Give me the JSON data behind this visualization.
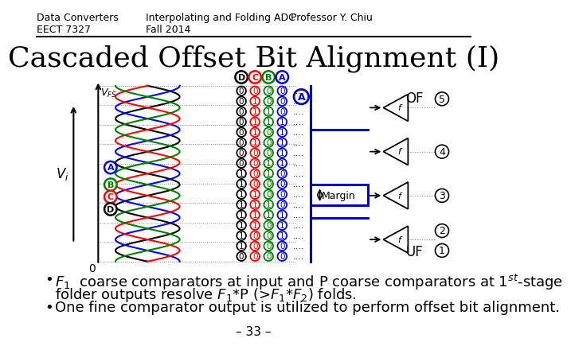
{
  "header_left": "Data Converters\nEECT 7327",
  "header_center": "Interpolating and Folding ADC\nFall 2014",
  "header_right": "Professor Y. Chiu",
  "title": "Cascaded Offset Bit Alignment (I)",
  "bullet1_main": "$F_1$  coarse comparators at input and P coarse comparators at 1$^{st}$-stage",
  "bullet1_sub": "folder outputs resolve $F_1$*P (>$F_1$*$F_2$) folds.",
  "bullet2": "One fine comparator output is utilized to perform offset bit alignment.",
  "footer": "– 33 –",
  "bg_color": "#ffffff",
  "text_color": "#000000",
  "header_line_color": "#000000",
  "title_fontsize": 26,
  "header_fontsize": 9,
  "body_fontsize": 13,
  "footer_fontsize": 11,
  "wave_colors": [
    "black",
    "blue",
    "red",
    "green"
  ],
  "bit_colors": [
    "black",
    "red",
    "green",
    "blue"
  ],
  "bit_labels": [
    "D",
    "C",
    "B",
    "A"
  ],
  "label_colors_abcd": [
    "blue",
    "green",
    "red",
    "black"
  ],
  "stair_color": "#0000cc",
  "num_rows": 17
}
